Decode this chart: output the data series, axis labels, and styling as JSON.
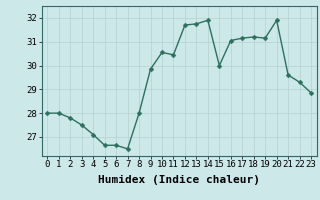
{
  "x": [
    0,
    1,
    2,
    3,
    4,
    5,
    6,
    7,
    8,
    9,
    10,
    11,
    12,
    13,
    14,
    15,
    16,
    17,
    18,
    19,
    20,
    21,
    22,
    23
  ],
  "y": [
    28.0,
    28.0,
    27.8,
    27.5,
    27.1,
    26.65,
    26.65,
    26.5,
    28.0,
    29.85,
    30.55,
    30.45,
    31.7,
    31.75,
    31.9,
    30.0,
    31.05,
    31.15,
    31.2,
    31.15,
    31.9,
    29.6,
    29.3,
    28.85
  ],
  "line_color": "#2d7060",
  "marker": "D",
  "marker_size": 2.5,
  "bg_color": "#cde8e8",
  "grid_major_color": "#b8d4d4",
  "grid_minor_color": "#d4e8e8",
  "xlabel": "Humidex (Indice chaleur)",
  "xlabel_fontsize": 8,
  "ylim": [
    26.2,
    32.5
  ],
  "xlim": [
    -0.5,
    23.5
  ],
  "yticks": [
    27,
    28,
    29,
    30,
    31,
    32
  ],
  "xticks": [
    0,
    1,
    2,
    3,
    4,
    5,
    6,
    7,
    8,
    9,
    10,
    11,
    12,
    13,
    14,
    15,
    16,
    17,
    18,
    19,
    20,
    21,
    22,
    23
  ],
  "tick_fontsize": 6.5,
  "line_width": 1.0,
  "spine_color": "#336666"
}
